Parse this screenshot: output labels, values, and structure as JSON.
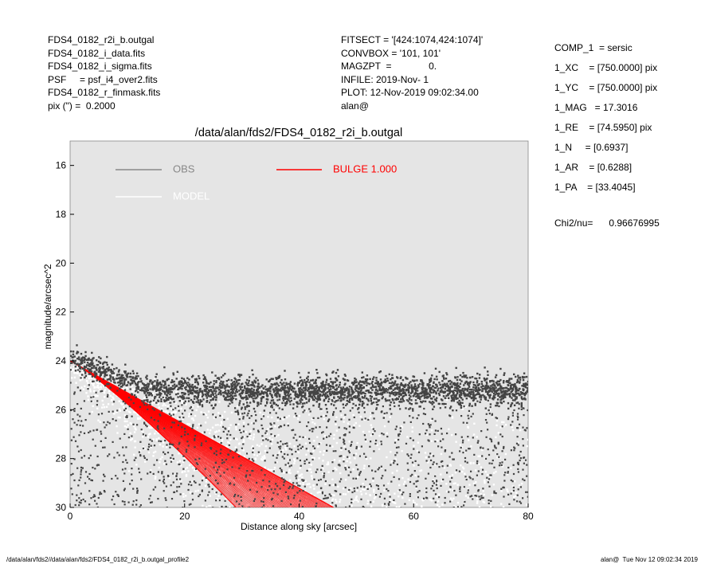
{
  "header_left": [
    "FDS4_0182_r2i_b.outgal",
    "FDS4_0182_i_data.fits",
    "FDS4_0182_i_sigma.fits",
    "PSF     = psf_i4_over2.fits",
    "FDS4_0182_r_finmask.fits",
    "pix (\") =  0.2000"
  ],
  "header_mid": [
    "FITSECT = '[424:1074,424:1074]'",
    "CONVBOX = '101, 101'",
    "MAGZPT  =              0.",
    "INFILE: 2019-Nov- 1",
    "PLOT: 12-Nov-2019 09:02:34.00",
    "alan@"
  ],
  "params": [
    "COMP_1  = sersic",
    "1_XC    = [750.0000] pix",
    "1_YC    = [750.0000] pix",
    "1_MAG   = 17.3016",
    "1_RE    = [74.5950] pix",
    "1_N     = [0.6937]",
    "1_AR    = [0.6288]",
    "1_PA    = [33.4045]"
  ],
  "chi2": "Chi2/nu=      0.96676995",
  "footer_left": "/data/alan/fds2//data/alan/fds2/FDS4_0182_r2i_b.outgal_profile2",
  "footer_right": "alan@  Tue Nov 12 09:02:34 2019",
  "chart_data": {
    "type": "scatter",
    "title": "/data/alan/fds2/FDS4_0182_r2i_b.outgal",
    "xlabel": "Distance along sky [arcsec]",
    "ylabel": "magnitude/arcsec^2",
    "xlim": [
      0,
      80
    ],
    "ylim": [
      30,
      15
    ],
    "y_inverted": true,
    "xticks": [
      "0",
      "20",
      "40",
      "60",
      "80"
    ],
    "yticks": [
      "16",
      "18",
      "20",
      "22",
      "24",
      "26",
      "28",
      "30"
    ],
    "grid": false,
    "legend": [
      {
        "label": "OBS",
        "color": "#888888"
      },
      {
        "label": "MODEL",
        "color": "#ffffff"
      },
      {
        "label": "BULGE  1.000",
        "color": "#ff0000"
      }
    ],
    "colors": {
      "background": "#e5e5e5",
      "obs": "#444444",
      "model": "#ffffff",
      "bulge": "#ff0000"
    },
    "series": [
      {
        "name": "OBS",
        "x_range": [
          0,
          80
        ],
        "y_start": 23.9,
        "y_plateau": 25.2,
        "y_max": 30
      },
      {
        "name": "MODEL",
        "x_range": [
          0,
          80
        ],
        "y_start": 24.0,
        "y_max": 30
      },
      {
        "name": "BULGE  1.000",
        "x_range": [
          0,
          46
        ],
        "y_start": 24.0,
        "y_end_inner": 30,
        "y_end_outer": 30
      }
    ]
  }
}
